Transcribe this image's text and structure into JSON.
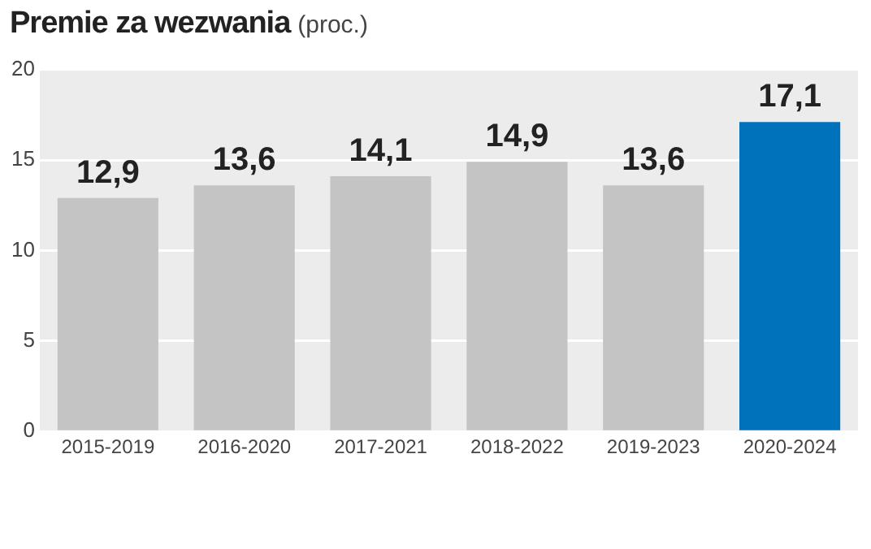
{
  "chart_data": {
    "type": "bar",
    "title": "Premie za wezwania",
    "subtitle": "(proc.)",
    "categories": [
      "2015-2019",
      "2016-2020",
      "2017-2021",
      "2018-2022",
      "2019-2023",
      "2020-2024"
    ],
    "values": [
      12.9,
      13.6,
      14.1,
      14.9,
      13.6,
      17.1
    ],
    "colors": [
      "#c4c4c4",
      "#c4c4c4",
      "#c4c4c4",
      "#c4c4c4",
      "#c4c4c4",
      "#0072bb"
    ],
    "value_labels": [
      "12,9",
      "13,6",
      "14,1",
      "14,9",
      "13,6",
      "17,1"
    ],
    "ylim": [
      0,
      20
    ],
    "yticks": [
      0,
      5,
      10,
      15,
      20
    ],
    "grid": "y",
    "legend": false
  }
}
